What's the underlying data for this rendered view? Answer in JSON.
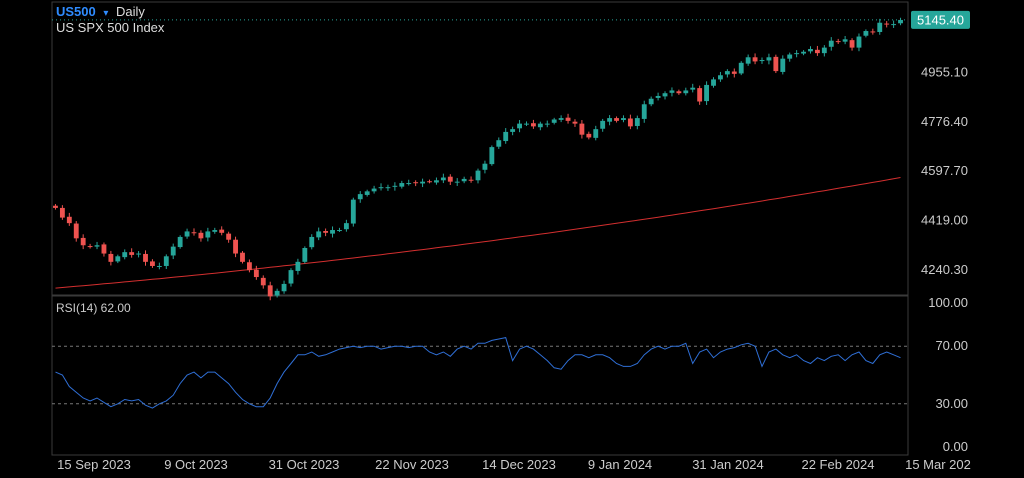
{
  "header": {
    "symbol": "US500",
    "dropdown_glyph": "▾",
    "interval": "Daily",
    "instrument_name": "US SPX 500 Index"
  },
  "price_panel": {
    "last_price": "5145.40",
    "ticks": [
      "4240.30",
      "4419.00",
      "4597.70",
      "4776.40",
      "4955.10"
    ]
  },
  "rsi_panel": {
    "label": "RSI(14) 62.00",
    "ticks": [
      "100.00",
      "70.00",
      "30.00",
      "0.00"
    ]
  },
  "x_labels": [
    "15 Sep 2023",
    "9 Oct 2023",
    "31 Oct 2023",
    "22 Nov 2023",
    "14 Dec 2023",
    "9 Jan 2024",
    "31 Jan 2024",
    "22 Feb 2024",
    "15 Mar 202"
  ],
  "colors": {
    "up": "#26a69a",
    "down": "#ef5350",
    "ma": "#d32f2f",
    "rsi": "#2f6fd6",
    "symbol": "#2f8cff",
    "grid": "#3a3a3a",
    "text": "#cccccc"
  },
  "chart_data": [
    {
      "type": "candlestick",
      "symbol": "US500",
      "interval": "Daily",
      "ylim": [
        4150,
        5210
      ],
      "y_ticks": [
        4240.3,
        4419.0,
        4597.7,
        4776.4,
        4955.1
      ],
      "last_price": 5145.4,
      "moving_average_start": 4175,
      "moving_average_end": 4575,
      "closes": [
        4465,
        4430,
        4410,
        4355,
        4330,
        4325,
        4330,
        4300,
        4270,
        4290,
        4305,
        4295,
        4300,
        4270,
        4255,
        4255,
        4290,
        4325,
        4360,
        4380,
        4375,
        4355,
        4380,
        4385,
        4375,
        4350,
        4300,
        4270,
        4240,
        4215,
        4185,
        4145,
        4165,
        4190,
        4240,
        4270,
        4320,
        4360,
        4380,
        4375,
        4385,
        4385,
        4410,
        4495,
        4515,
        4525,
        4535,
        4540,
        4540,
        4545,
        4555,
        4555,
        4555,
        4560,
        4560,
        4565,
        4575,
        4560,
        4560,
        4570,
        4565,
        4600,
        4625,
        4685,
        4710,
        4740,
        4750,
        4770,
        4770,
        4760,
        4770,
        4770,
        4785,
        4790,
        4780,
        4770,
        4730,
        4720,
        4750,
        4780,
        4790,
        4780,
        4790,
        4760,
        4790,
        4840,
        4860,
        4870,
        4880,
        4890,
        4880,
        4890,
        4900,
        4850,
        4910,
        4930,
        4945,
        4960,
        4950,
        4990,
        5010,
        4995,
        5000,
        5010,
        4960,
        5005,
        5020,
        5025,
        5030,
        5040,
        5025,
        5045,
        5070,
        5065,
        5075,
        5045,
        5085,
        5105,
        5100,
        5135,
        5130,
        5130,
        5145
      ]
    },
    {
      "type": "line",
      "name": "RSI(14)",
      "ylim": [
        0,
        100
      ],
      "y_ticks": [
        100,
        70,
        30,
        0
      ],
      "last_value": 62.0,
      "values": [
        52,
        50,
        42,
        38,
        34,
        32,
        34,
        31,
        28,
        30,
        33,
        32,
        33,
        29,
        27,
        30,
        32,
        36,
        44,
        50,
        52,
        48,
        52,
        52,
        48,
        44,
        38,
        33,
        30,
        28,
        28,
        34,
        44,
        52,
        58,
        64,
        64,
        66,
        63,
        64,
        66,
        68,
        69,
        70,
        69,
        70,
        70,
        68,
        69,
        70,
        70,
        69,
        70,
        70,
        66,
        64,
        66,
        63,
        68,
        70,
        68,
        72,
        72,
        74,
        75,
        76,
        60,
        68,
        70,
        68,
        64,
        60,
        55,
        54,
        60,
        64,
        64,
        62,
        64,
        64,
        62,
        58,
        56,
        56,
        58,
        64,
        68,
        70,
        68,
        70,
        70,
        72,
        58,
        66,
        68,
        62,
        66,
        68,
        69,
        71,
        72,
        70,
        56,
        66,
        68,
        64,
        62,
        64,
        60,
        58,
        62,
        60,
        63,
        64,
        60,
        64,
        66,
        60,
        58,
        64,
        66,
        64,
        62
      ]
    }
  ]
}
